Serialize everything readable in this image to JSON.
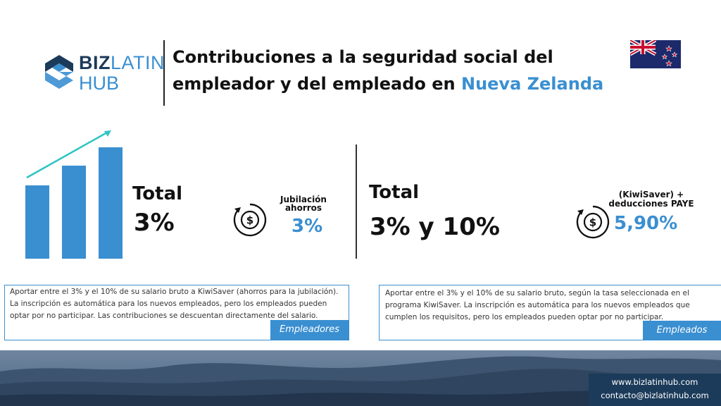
{
  "logo": {
    "word_dark": "BIZ",
    "word_light": "LATIN",
    "line2": "HUB"
  },
  "title": {
    "part1": "Contribuciones a la seguridad social del empleador y del empleado en",
    "accent": "Nueva Zelanda"
  },
  "employer": {
    "total_label": "Total",
    "total_value": "3%",
    "extra_label": "Jubilación ahorros",
    "extra_value": "3%",
    "description": "Aportar entre el 3% y el 10% de su salario bruto a KiwiSaver (ahorros para la jubilación). La inscripción es automática para los nuevos empleados, pero los empleados pueden optar por no participar. Las contribuciones se descuentan directamente del salario.",
    "tag": "Empleadores"
  },
  "employee": {
    "total_label": "Total",
    "total_value": "3% y 10%",
    "extra_label": "(KiwiSaver) + deducciones PAYE",
    "extra_value": "5,90%",
    "description": "Aportar entre el 3% y el 10% de su salario bruto, según la tasa seleccionada en el programa KiwiSaver. La inscripción es automática para los nuevos empleados que cumplen los requisitos, pero los empleados pueden optar por no participar.",
    "tag": "Empleados"
  },
  "contact": {
    "website": "www.bizlatinhub.com",
    "email": "contacto@bizlatinhub.com"
  },
  "icons": {
    "chart": "bar-chart-growth-icon",
    "coin": "dollar-coin-cycle-icon",
    "flag": "new-zealand-flag-icon"
  },
  "colors": {
    "accent": "#3a8fd1",
    "dark": "#1c3b5a",
    "arrow": "#2ec4c4"
  }
}
